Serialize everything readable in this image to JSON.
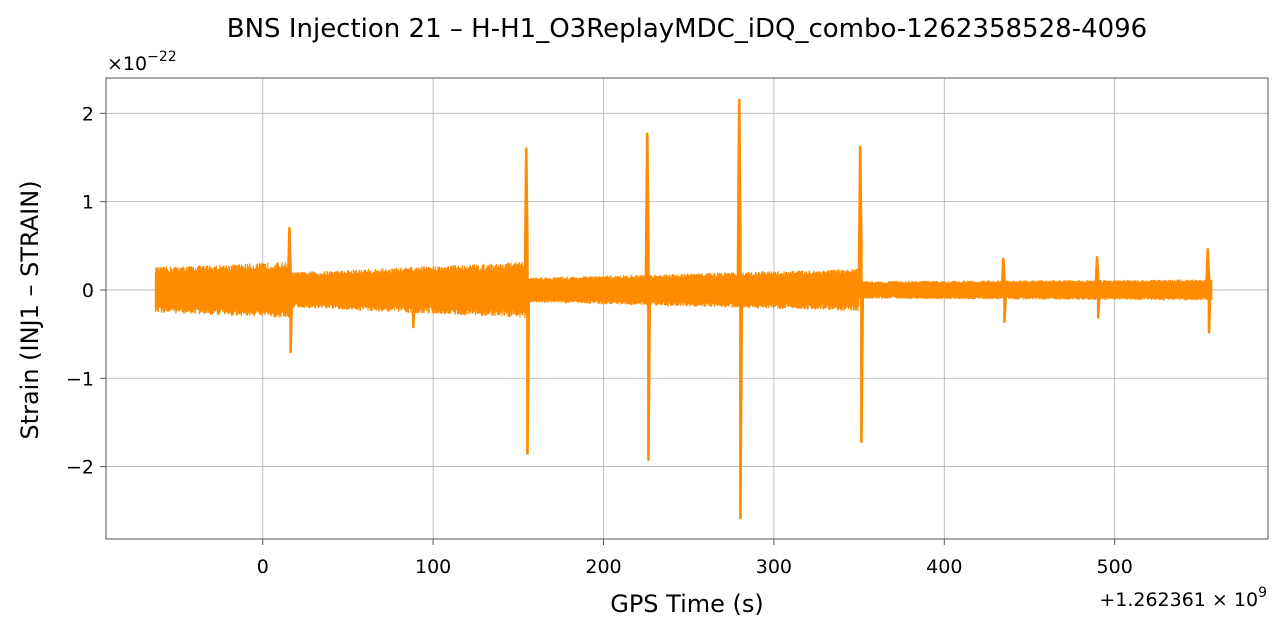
{
  "chart_data": {
    "type": "line",
    "title": "BNS Injection 21 – H-H1_O3ReplayMDC_iDQ_combo-1262358528-4096",
    "xlabel": "GPS Time (s)",
    "ylabel": "Strain (INJ1 – STRAIN)",
    "x_offset_label": "+1.262361 × 10",
    "x_offset_exp": "9",
    "y_multiplier_label": "×10",
    "y_multiplier_exp": "−22",
    "xlim": [
      -92,
      590
    ],
    "ylim": [
      -2.82,
      2.4
    ],
    "xticks": [
      0,
      100,
      200,
      300,
      400,
      500
    ],
    "xtick_labels": [
      "0",
      "100",
      "200",
      "300",
      "400",
      "500"
    ],
    "yticks": [
      -2,
      -1,
      0,
      1,
      2
    ],
    "ytick_labels": [
      "−2",
      "−1",
      "0",
      "1",
      "2"
    ],
    "grid": true,
    "series": [
      {
        "color": "#ff8c00",
        "x_range": [
          -63,
          557
        ],
        "noise_segments": [
          {
            "x": [
              -63,
              16
            ],
            "amplitude": [
              0.26,
              0.32
            ]
          },
          {
            "x": [
              16,
              155
            ],
            "amplitude": [
              0.2,
              0.32
            ]
          },
          {
            "x": [
              155,
              350
            ],
            "amplitude": [
              0.14,
              0.24
            ]
          },
          {
            "x": [
              350,
              557
            ],
            "amplitude": [
              0.1,
              0.12
            ]
          }
        ],
        "spikes": [
          {
            "x": 16,
            "max": 0.7,
            "min": -0.7
          },
          {
            "x": 88,
            "max": -0.1,
            "min": -0.42
          },
          {
            "x": 155,
            "max": 1.6,
            "min": -1.85
          },
          {
            "x": 226,
            "max": 1.77,
            "min": -1.92
          },
          {
            "x": 280,
            "max": 2.15,
            "min": -2.58
          },
          {
            "x": 351,
            "max": 1.62,
            "min": -1.72
          },
          {
            "x": 435,
            "max": 0.35,
            "min": -0.36
          },
          {
            "x": 490,
            "max": 0.37,
            "min": -0.31
          },
          {
            "x": 555,
            "max": 0.46,
            "min": -0.48
          }
        ]
      }
    ]
  }
}
